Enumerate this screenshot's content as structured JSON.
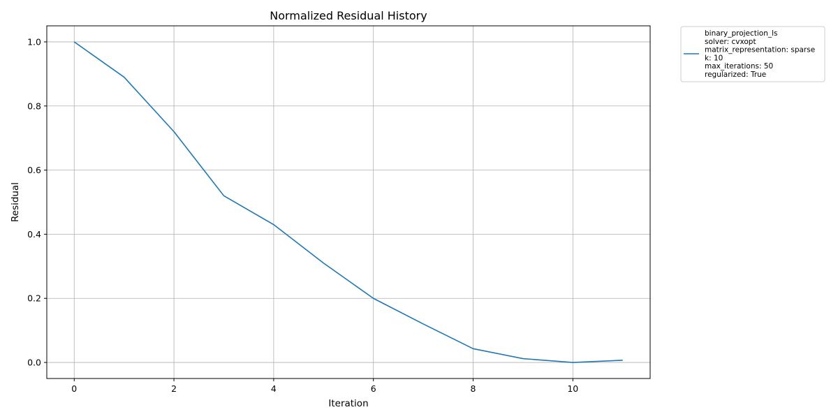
{
  "chart_data": {
    "type": "line",
    "title": "Normalized Residual History",
    "xlabel": "Iteration",
    "ylabel": "Residual",
    "xlim": [
      -0.55,
      11.55
    ],
    "ylim": [
      -0.05,
      1.05
    ],
    "xticks": [
      0,
      2,
      4,
      6,
      8,
      10
    ],
    "yticks": [
      0.0,
      0.2,
      0.4,
      0.6,
      0.8,
      1.0
    ],
    "grid": true,
    "legend_position": "outside-top-right",
    "series": [
      {
        "name": "binary_projection_ls\nsolver: cvxopt\nmatrix_representation: sparse\nk: 10\nmax_iterations: 50\nregularized: True",
        "color": "#1f77b4",
        "x": [
          0,
          1,
          2,
          3,
          4,
          5,
          6,
          7,
          8,
          9,
          10,
          11
        ],
        "y": [
          1.0,
          0.89,
          0.72,
          0.52,
          0.43,
          0.31,
          0.2,
          0.12,
          0.043,
          0.012,
          0.0,
          0.007
        ]
      }
    ]
  }
}
